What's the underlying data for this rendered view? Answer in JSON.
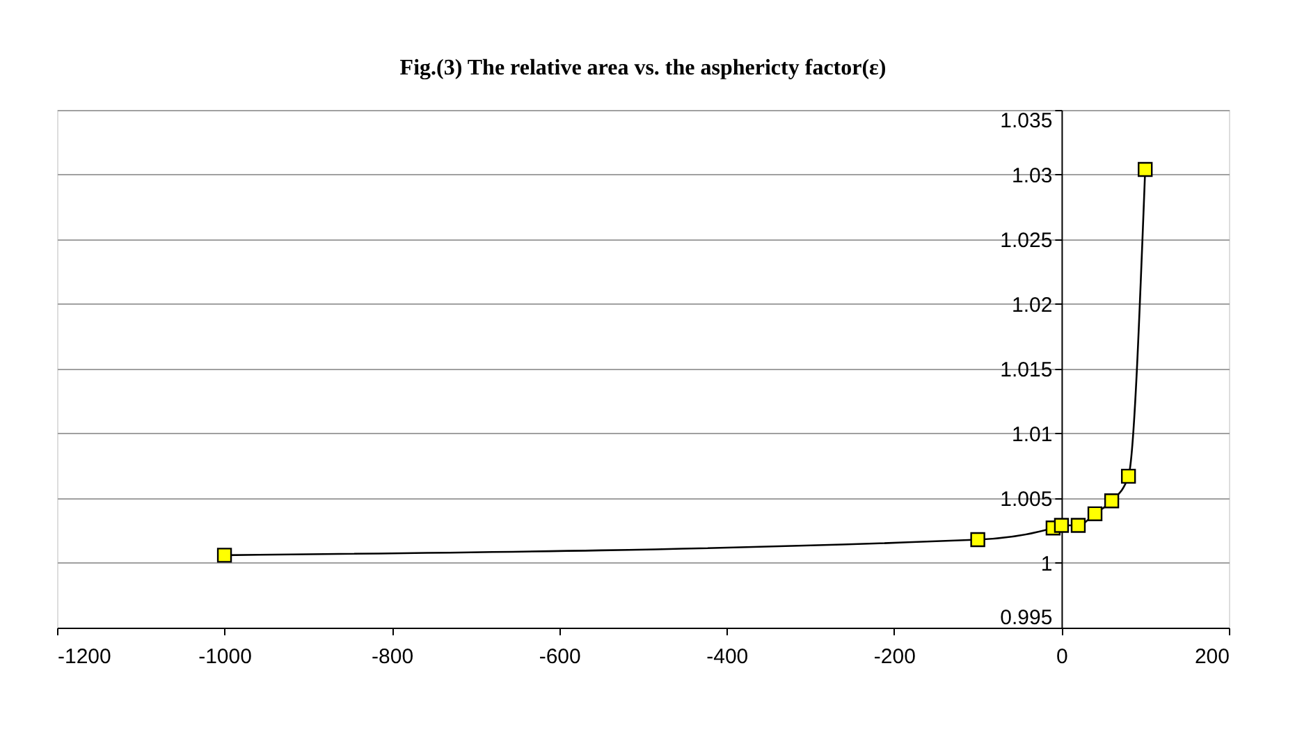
{
  "chart_data": {
    "type": "line",
    "title": "Fig.(3) The relative area vs. the asphericty factor(ε)",
    "x": [
      -1000,
      -100,
      -10,
      0,
      20,
      40,
      60,
      80,
      100
    ],
    "series": [
      {
        "color": "#000000",
        "values": [
          1.0006,
          1.0018,
          1.0027,
          1.0029,
          1.0029,
          1.0038,
          1.0048,
          1.0067,
          1.0304
        ]
      }
    ],
    "xlim": [
      -1200,
      200
    ],
    "xticks": [
      -1200,
      -1000,
      -800,
      -600,
      -400,
      -200,
      0,
      200
    ],
    "ylim": [
      0.995,
      1.035
    ],
    "yticks": [
      0.995,
      1,
      1.005,
      1.01,
      1.015,
      1.02,
      1.025,
      1.03,
      1.035
    ],
    "grid": "y",
    "marker": "square",
    "line_style": "solid",
    "legend": false
  }
}
